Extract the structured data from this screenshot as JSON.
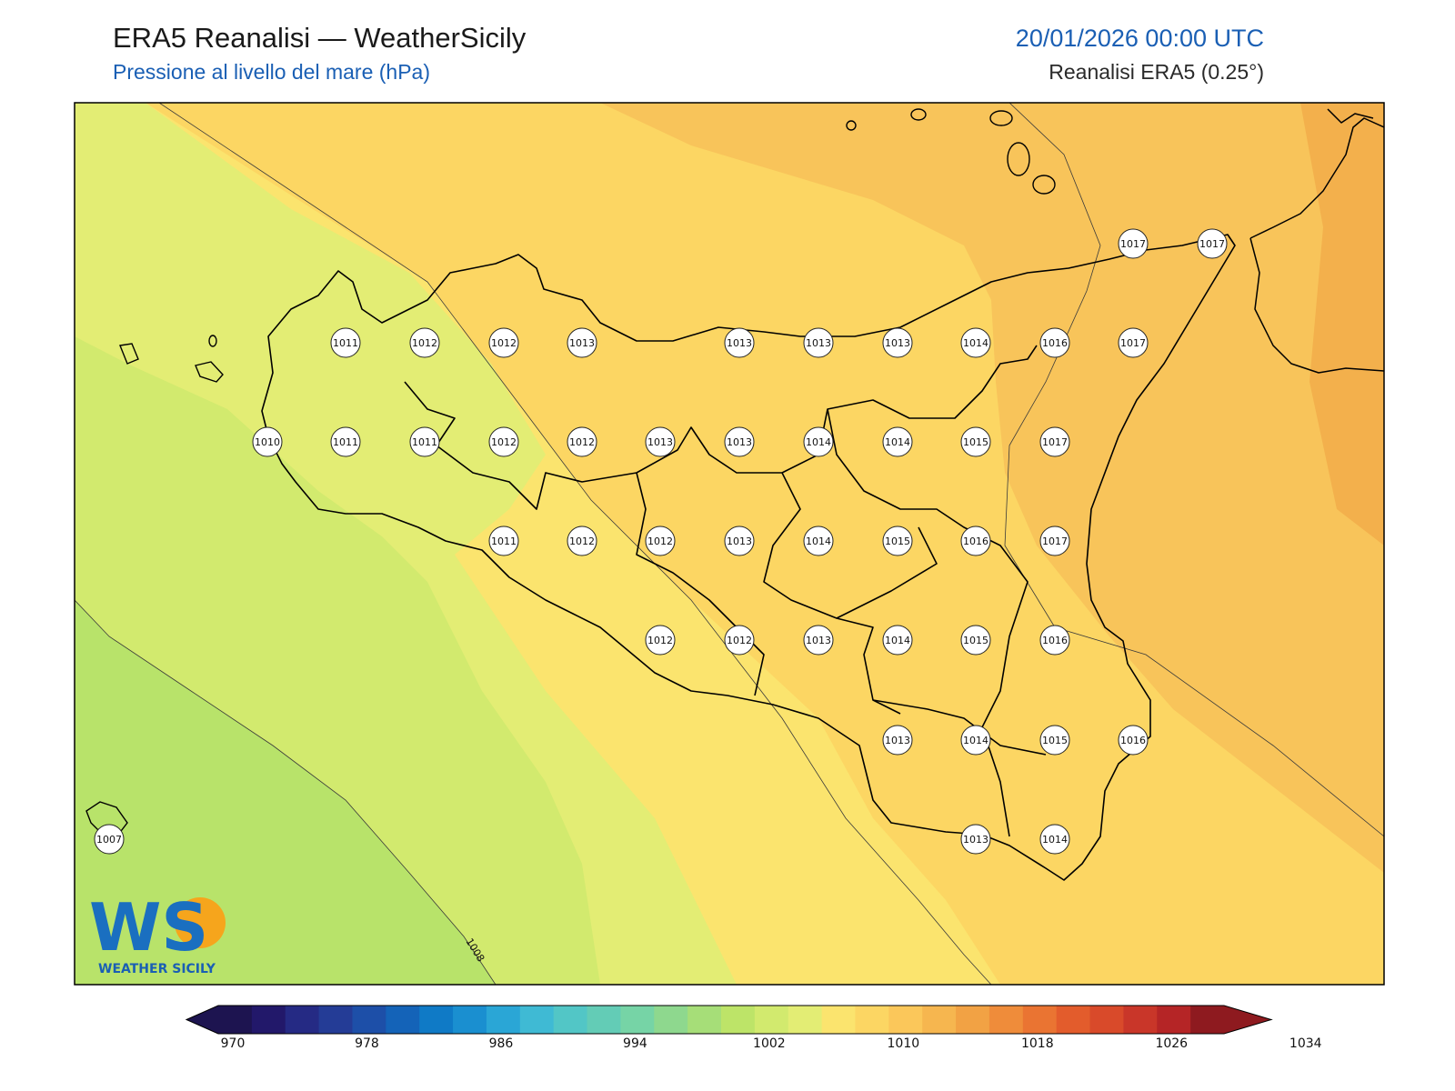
{
  "header": {
    "title": "ERA5 Reanalisi — WeatherSicily",
    "subtitle": "Pressione al livello del mare (hPa)",
    "datetime": "20/01/2026 00:00 UTC",
    "source": "Reanalisi ERA5 (0.25°)"
  },
  "contour_label": "1008",
  "logo": {
    "text": "WS",
    "caption": "WEATHER SICILY"
  },
  "stations": [
    {
      "value": "1017"
    },
    {
      "value": "1017"
    },
    {
      "value": "1011"
    },
    {
      "value": "1012"
    },
    {
      "value": "1012"
    },
    {
      "value": "1013"
    },
    {
      "value": "1013"
    },
    {
      "value": "1013"
    },
    {
      "value": "1013"
    },
    {
      "value": "1014"
    },
    {
      "value": "1016"
    },
    {
      "value": "1017"
    },
    {
      "value": "1010"
    },
    {
      "value": "1011"
    },
    {
      "value": "1011"
    },
    {
      "value": "1012"
    },
    {
      "value": "1012"
    },
    {
      "value": "1013"
    },
    {
      "value": "1013"
    },
    {
      "value": "1014"
    },
    {
      "value": "1014"
    },
    {
      "value": "1015"
    },
    {
      "value": "1017"
    },
    {
      "value": "1011"
    },
    {
      "value": "1012"
    },
    {
      "value": "1012"
    },
    {
      "value": "1013"
    },
    {
      "value": "1014"
    },
    {
      "value": "1015"
    },
    {
      "value": "1016"
    },
    {
      "value": "1017"
    },
    {
      "value": "1012"
    },
    {
      "value": "1012"
    },
    {
      "value": "1013"
    },
    {
      "value": "1014"
    },
    {
      "value": "1015"
    },
    {
      "value": "1016"
    },
    {
      "value": "1013"
    },
    {
      "value": "1014"
    },
    {
      "value": "1015"
    },
    {
      "value": "1016"
    },
    {
      "value": "1007"
    },
    {
      "value": "1013"
    },
    {
      "value": "1014"
    }
  ],
  "colorbar": {
    "tick_labels": [
      "970",
      "978",
      "986",
      "994",
      "1002",
      "1010",
      "1018",
      "1026",
      "1034"
    ],
    "colors": [
      "#1d1450",
      "#22186a",
      "#252a84",
      "#243c96",
      "#1d4fa8",
      "#1463b8",
      "#0f7ac6",
      "#1a8fd0",
      "#2aa6d6",
      "#3fbad4",
      "#52c6c6",
      "#63ccb6",
      "#76d4a6",
      "#8ed88e",
      "#a6de78",
      "#bde468",
      "#d2ea6e",
      "#e3ed74",
      "#fbe46e",
      "#fcd663",
      "#fbc75a",
      "#f6b64f",
      "#f2a244",
      "#ef8c3a",
      "#ea7432",
      "#e35c2c",
      "#d94a2a",
      "#c93629",
      "#b52526",
      "#8e1a1f"
    ]
  },
  "colors": {
    "band_1004": "#b8e36a",
    "band_1008": "#d2ea6e",
    "band_1010": "#e3ed74",
    "band_1012": "#fbe46e",
    "band_1014": "#fcd663",
    "band_1016": "#f8c45a",
    "band_1018": "#f3b04c"
  }
}
